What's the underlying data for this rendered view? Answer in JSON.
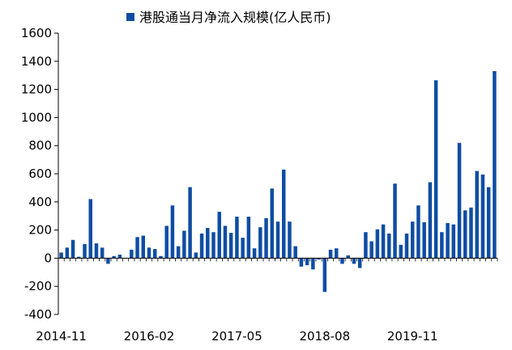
{
  "chart_data": {
    "type": "bar",
    "legend": {
      "label": "港股通当月净流入规模(亿人民币)",
      "placement": "top-center"
    },
    "series": [
      {
        "name": "港股通当月净流入规模(亿人民币)",
        "color": "#0e4da3",
        "values": [
          40,
          75,
          130,
          10,
          100,
          420,
          105,
          75,
          -40,
          15,
          25,
          0,
          60,
          150,
          160,
          75,
          65,
          15,
          230,
          375,
          85,
          195,
          505,
          40,
          175,
          215,
          185,
          330,
          230,
          180,
          295,
          145,
          295,
          70,
          220,
          285,
          495,
          260,
          630,
          260,
          85,
          -60,
          -50,
          -80,
          -10,
          -240,
          60,
          70,
          -40,
          20,
          -40,
          -70,
          185,
          120,
          205,
          240,
          175,
          530,
          95,
          175,
          260,
          375,
          255,
          540,
          1265,
          185,
          250,
          240,
          820,
          340,
          360,
          620,
          595,
          505,
          1330
        ]
      }
    ],
    "x_tick_labels": [
      "2014-11",
      "2016-02",
      "2017-05",
      "2018-08",
      "2019-11"
    ],
    "x_tick_indices": [
      0,
      15,
      30,
      45,
      60
    ],
    "yticks": [
      -400,
      -200,
      0,
      200,
      400,
      600,
      800,
      1000,
      1200,
      1400,
      1600
    ],
    "ylim": [
      -400,
      1600
    ],
    "grid": false,
    "xlabel": "",
    "ylabel": ""
  }
}
